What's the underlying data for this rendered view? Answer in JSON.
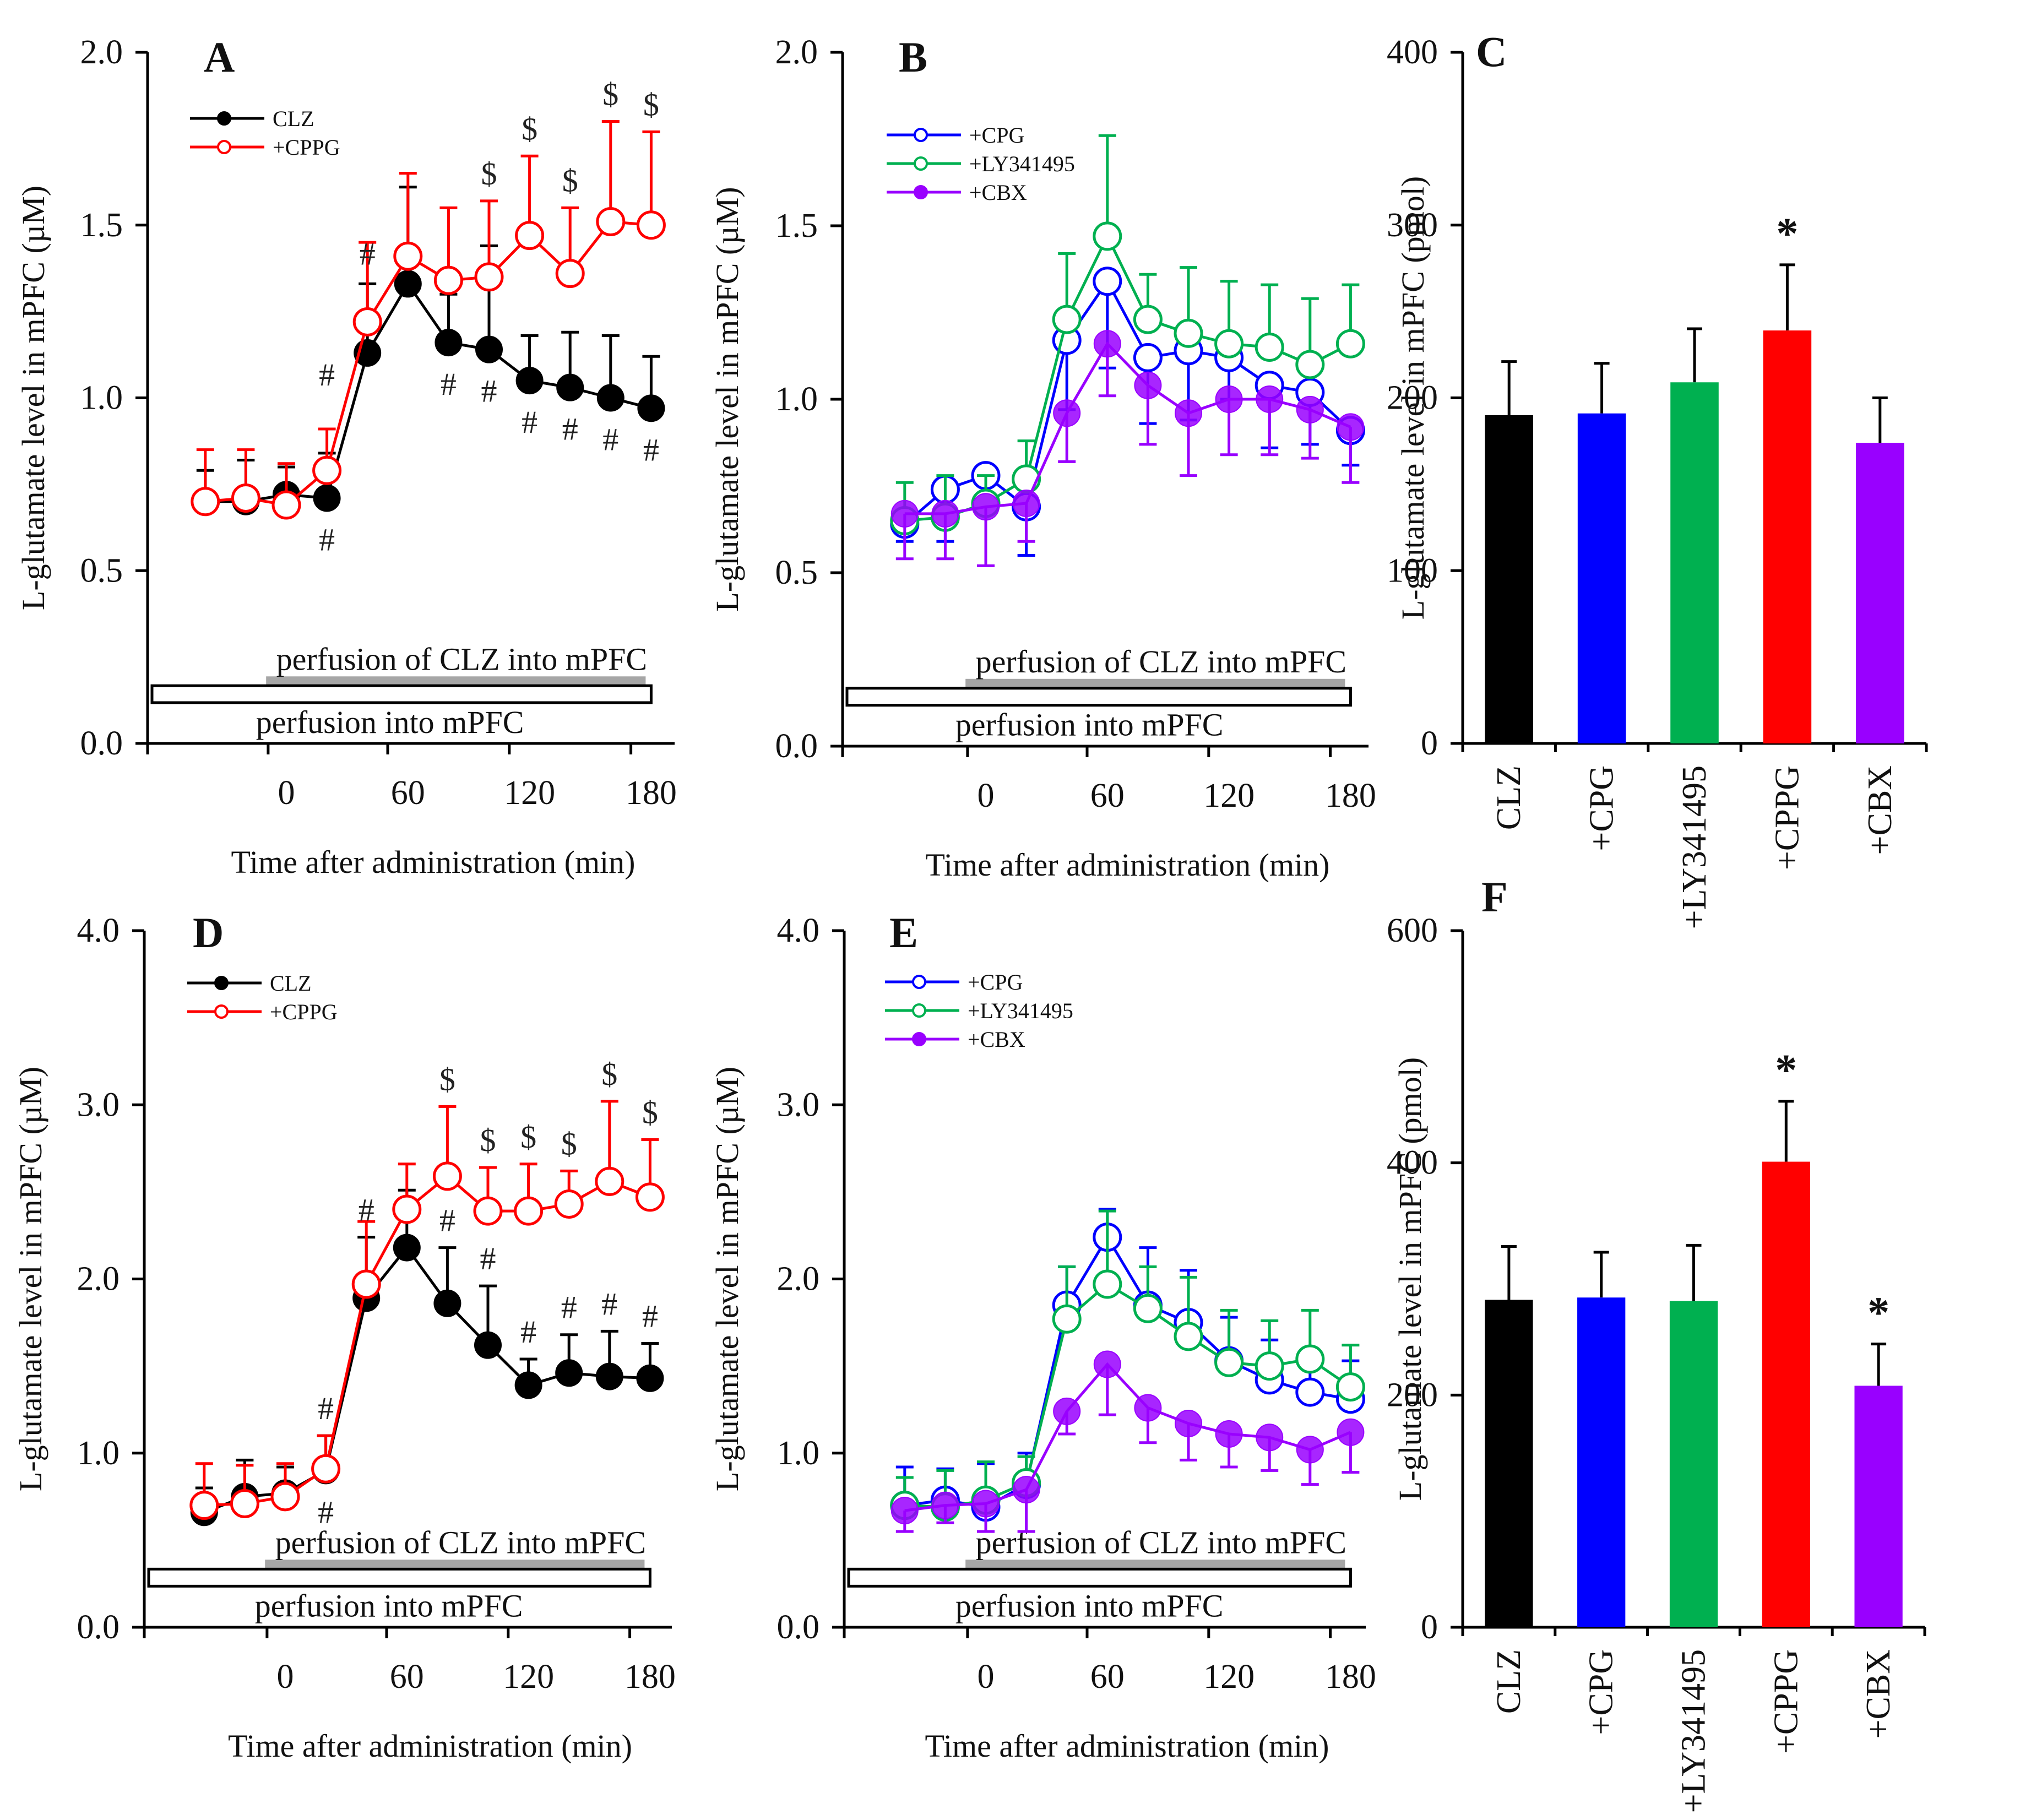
{
  "figure": {
    "time_axis_title": "Time after administration (min)",
    "line_ylabel": "L-glutamate level in mPFC (µM)",
    "bar_ylabel": "L-glutamate level in mPFC (pmol)",
    "perfusion_drug_label": "perfusion of CLZ into mPFC",
    "perfusion_label": "perfusion into mPFC",
    "colors": {
      "CLZ": "#000000",
      "CPPG": "#ff0000",
      "CPG": "#0000ff",
      "LY341495": "#00b050",
      "CBX": "#9900ff",
      "drug_bar": "#a6a6a6"
    }
  },
  "chart_data": [
    {
      "panel": "A",
      "type": "line",
      "title": "A",
      "xlabel": "Time after administration (min)",
      "ylabel": "L-glutamate level in mPFC (µM)",
      "x": [
        -40,
        -20,
        0,
        20,
        40,
        60,
        80,
        100,
        120,
        140,
        160,
        180
      ],
      "xticks": [
        "0",
        "60",
        "120",
        "180"
      ],
      "xtick_values": [
        0,
        60,
        120,
        180
      ],
      "yticks": [
        "0.0",
        "0.5",
        "1.0",
        "1.5",
        "2.0"
      ],
      "ylim": [
        0,
        2.0
      ],
      "legend": "top-left",
      "series": [
        {
          "name": "CLZ",
          "marker": "filled",
          "color": "#000000",
          "values": [
            0.7,
            0.7,
            0.72,
            0.71,
            1.13,
            1.33,
            1.16,
            1.14,
            1.05,
            1.03,
            1.0,
            0.97
          ],
          "err": [
            0.09,
            0.12,
            0.08,
            0.13,
            0.2,
            0.28,
            0.14,
            0.3,
            0.13,
            0.16,
            0.18,
            0.15
          ]
        },
        {
          "name": "+CPPG",
          "marker": "open",
          "color": "#ff0000",
          "values": [
            0.7,
            0.71,
            0.69,
            0.79,
            1.22,
            1.41,
            1.34,
            1.35,
            1.47,
            1.36,
            1.51,
            1.5
          ],
          "err": [
            0.15,
            0.14,
            0.12,
            0.12,
            0.23,
            0.24,
            0.21,
            0.22,
            0.23,
            0.19,
            0.29,
            0.27
          ]
        }
      ],
      "annotations": [
        {
          "symbol": "#",
          "series": "CLZ",
          "x": 20,
          "pos": "below"
        },
        {
          "symbol": "#",
          "series": "CLZ",
          "x": 20,
          "pos": "above-high"
        },
        {
          "symbol": "#",
          "series": "CLZ",
          "x": 40,
          "pos": "above-high"
        },
        {
          "symbol": "#",
          "series": "CLZ",
          "x": 80,
          "pos": "below"
        },
        {
          "symbol": "#",
          "series": "CLZ",
          "x": 100,
          "pos": "below"
        },
        {
          "symbol": "#",
          "series": "CLZ",
          "x": 120,
          "pos": "below"
        },
        {
          "symbol": "#",
          "series": "CLZ",
          "x": 140,
          "pos": "below"
        },
        {
          "symbol": "#",
          "series": "CLZ",
          "x": 160,
          "pos": "below"
        },
        {
          "symbol": "#",
          "series": "CLZ",
          "x": 180,
          "pos": "below"
        },
        {
          "symbol": "$",
          "series": "+CPPG",
          "x": 100,
          "pos": "above"
        },
        {
          "symbol": "$",
          "series": "+CPPG",
          "x": 120,
          "pos": "above"
        },
        {
          "symbol": "$",
          "series": "+CPPG",
          "x": 140,
          "pos": "above"
        },
        {
          "symbol": "$",
          "series": "+CPPG",
          "x": 160,
          "pos": "above"
        },
        {
          "symbol": "$",
          "series": "+CPPG",
          "x": 180,
          "pos": "above"
        }
      ]
    },
    {
      "panel": "B",
      "type": "line",
      "title": "B",
      "xlabel": "Time after administration (min)",
      "ylabel": "L-glutamate level in mPFC (µM)",
      "x": [
        -40,
        -20,
        0,
        20,
        40,
        60,
        80,
        100,
        120,
        140,
        160,
        180
      ],
      "xticks": [
        "0",
        "60",
        "120",
        "180"
      ],
      "xtick_values": [
        0,
        60,
        120,
        180
      ],
      "yticks": [
        "0.0",
        "0.5",
        "1.0",
        "1.5",
        "2.0"
      ],
      "ylim": [
        0,
        2.0
      ],
      "legend": "top-left",
      "series": [
        {
          "name": "+CPG",
          "marker": "open",
          "color": "#0000ff",
          "values": [
            0.64,
            0.74,
            0.78,
            0.69,
            1.17,
            1.34,
            1.12,
            1.14,
            1.12,
            1.04,
            1.02,
            0.91
          ],
          "err": [
            -0.05,
            -0.15,
            -0.1,
            -0.14,
            -0.2,
            -0.25,
            -0.19,
            -0.2,
            -0.12,
            -0.18,
            -0.15,
            -0.1
          ]
        },
        {
          "name": "+LY341495",
          "marker": "open",
          "color": "#00b050",
          "values": [
            0.65,
            0.66,
            0.7,
            0.77,
            1.23,
            1.47,
            1.23,
            1.19,
            1.16,
            1.15,
            1.1,
            1.16
          ],
          "err": [
            0.11,
            0.12,
            0.08,
            0.11,
            0.19,
            0.29,
            0.13,
            0.19,
            0.18,
            0.18,
            0.19,
            0.17
          ]
        },
        {
          "name": "+CBX",
          "marker": "filled",
          "color": "#9900ff",
          "values": [
            0.67,
            0.67,
            0.69,
            0.7,
            0.96,
            1.16,
            1.04,
            0.96,
            1.0,
            1.0,
            0.97,
            0.92
          ],
          "err": [
            -0.13,
            -0.13,
            -0.17,
            -0.11,
            -0.14,
            -0.15,
            -0.17,
            -0.18,
            -0.16,
            -0.16,
            -0.14,
            -0.16
          ]
        }
      ]
    },
    {
      "panel": "C",
      "type": "bar",
      "title": "C",
      "ylabel": "L-glutamate level in mPFC (pmol)",
      "categories": [
        "CLZ",
        "+CPG",
        "+LY341495",
        "+CPPG",
        "+CBX"
      ],
      "values": [
        190,
        191,
        209,
        239,
        174
      ],
      "err": [
        31,
        29,
        31,
        38,
        26
      ],
      "colors": [
        "#000000",
        "#0000ff",
        "#00b050",
        "#ff0000",
        "#9900ff"
      ],
      "significance": [
        "",
        "",
        "",
        "*",
        ""
      ],
      "yticks": [
        "0",
        "100",
        "200",
        "300",
        "400"
      ],
      "ylim": [
        0,
        400
      ]
    },
    {
      "panel": "D",
      "type": "line",
      "title": "D",
      "xlabel": "Time after administration (min)",
      "ylabel": "L-glutamate level in mPFC (µM)",
      "x": [
        -40,
        -20,
        0,
        20,
        40,
        60,
        80,
        100,
        120,
        140,
        160,
        180
      ],
      "xticks": [
        "0",
        "60",
        "120",
        "180"
      ],
      "xtick_values": [
        0,
        60,
        120,
        180
      ],
      "yticks": [
        "0.0",
        "1.0",
        "2.0",
        "3.0",
        "4.0"
      ],
      "ylim": [
        0,
        4.0
      ],
      "legend": "top-left",
      "series": [
        {
          "name": "CLZ",
          "marker": "filled",
          "color": "#000000",
          "values": [
            0.66,
            0.75,
            0.77,
            0.9,
            1.89,
            2.18,
            1.86,
            1.62,
            1.39,
            1.46,
            1.44,
            1.43
          ],
          "err": [
            0.14,
            0.21,
            0.15,
            0.2,
            0.35,
            0.33,
            0.32,
            0.34,
            0.15,
            0.22,
            0.26,
            0.2
          ]
        },
        {
          "name": "+CPPG",
          "marker": "open",
          "color": "#ff0000",
          "values": [
            0.7,
            0.71,
            0.75,
            0.91,
            1.97,
            2.4,
            2.59,
            2.39,
            2.39,
            2.43,
            2.56,
            2.47
          ],
          "err": [
            0.24,
            0.22,
            0.19,
            0.19,
            0.36,
            0.26,
            0.4,
            0.25,
            0.27,
            0.19,
            0.46,
            0.33
          ]
        }
      ],
      "annotations": [
        {
          "symbol": "#",
          "series": "CLZ",
          "x": 20,
          "pos": "above"
        },
        {
          "symbol": "#",
          "series": "CLZ",
          "x": 20,
          "pos": "below"
        },
        {
          "symbol": "#",
          "series": "CLZ",
          "x": 40,
          "pos": "above"
        },
        {
          "symbol": "#",
          "series": "CLZ",
          "x": 80,
          "pos": "above"
        },
        {
          "symbol": "#",
          "series": "CLZ",
          "x": 100,
          "pos": "above"
        },
        {
          "symbol": "#",
          "series": "CLZ",
          "x": 120,
          "pos": "above"
        },
        {
          "symbol": "#",
          "series": "CLZ",
          "x": 140,
          "pos": "above"
        },
        {
          "symbol": "#",
          "series": "CLZ",
          "x": 160,
          "pos": "above"
        },
        {
          "symbol": "#",
          "series": "CLZ",
          "x": 180,
          "pos": "above"
        },
        {
          "symbol": "$",
          "series": "+CPPG",
          "x": 80,
          "pos": "above"
        },
        {
          "symbol": "$",
          "series": "+CPPG",
          "x": 100,
          "pos": "above"
        },
        {
          "symbol": "$",
          "series": "+CPPG",
          "x": 120,
          "pos": "above"
        },
        {
          "symbol": "$",
          "series": "+CPPG",
          "x": 140,
          "pos": "above"
        },
        {
          "symbol": "$",
          "series": "+CPPG",
          "x": 160,
          "pos": "above"
        },
        {
          "symbol": "$",
          "series": "+CPPG",
          "x": 180,
          "pos": "above"
        }
      ]
    },
    {
      "panel": "E",
      "type": "line",
      "title": "E",
      "xlabel": "Time after administration (min)",
      "ylabel": "L-glutamate level in mPFC (µM)",
      "x": [
        -40,
        -20,
        0,
        20,
        40,
        60,
        80,
        100,
        120,
        140,
        160,
        180
      ],
      "xticks": [
        "0",
        "60",
        "120",
        "180"
      ],
      "xtick_values": [
        0,
        60,
        120,
        180
      ],
      "yticks": [
        "0.0",
        "1.0",
        "2.0",
        "3.0",
        "4.0"
      ],
      "ylim": [
        0,
        4.0
      ],
      "legend": "top-left",
      "series": [
        {
          "name": "+CPG",
          "marker": "open",
          "color": "#0000ff",
          "values": [
            0.7,
            0.73,
            0.69,
            0.82,
            1.85,
            2.24,
            1.85,
            1.75,
            1.53,
            1.42,
            1.35,
            1.31
          ],
          "err": [
            0.22,
            0.18,
            0.25,
            0.18,
            0.22,
            0.16,
            0.33,
            0.3,
            0.25,
            0.23,
            0.25,
            0.22
          ]
        },
        {
          "name": "+LY341495",
          "marker": "open",
          "color": "#00b050",
          "values": [
            0.7,
            0.69,
            0.73,
            0.83,
            1.77,
            1.97,
            1.83,
            1.67,
            1.52,
            1.5,
            1.54,
            1.38
          ],
          "err": [
            0.16,
            0.21,
            0.22,
            0.15,
            0.3,
            0.42,
            0.24,
            0.34,
            0.3,
            0.26,
            0.28,
            0.24
          ]
        },
        {
          "name": "+CBX",
          "marker": "filled",
          "color": "#9900ff",
          "values": [
            0.67,
            0.7,
            0.71,
            0.79,
            1.24,
            1.51,
            1.26,
            1.17,
            1.11,
            1.09,
            1.02,
            1.12
          ],
          "err": [
            -0.12,
            -0.1,
            -0.16,
            -0.24,
            -0.13,
            -0.29,
            -0.2,
            -0.21,
            -0.19,
            -0.19,
            -0.2,
            -0.23
          ]
        }
      ]
    },
    {
      "panel": "F",
      "type": "bar",
      "title": "F",
      "ylabel": "L-glutamate level in mPFC (pmol)",
      "categories": [
        "CLZ",
        "+CPG",
        "+LY341495",
        "+CPPG",
        "+CBX"
      ],
      "values": [
        282,
        284,
        281,
        401,
        208
      ],
      "err": [
        46,
        39,
        48,
        52,
        36
      ],
      "colors": [
        "#000000",
        "#0000ff",
        "#00b050",
        "#ff0000",
        "#9900ff"
      ],
      "significance": [
        "",
        "",
        "",
        "*",
        "*"
      ],
      "yticks": [
        "0",
        "200",
        "400",
        "600"
      ],
      "ylim": [
        0,
        600
      ]
    }
  ]
}
